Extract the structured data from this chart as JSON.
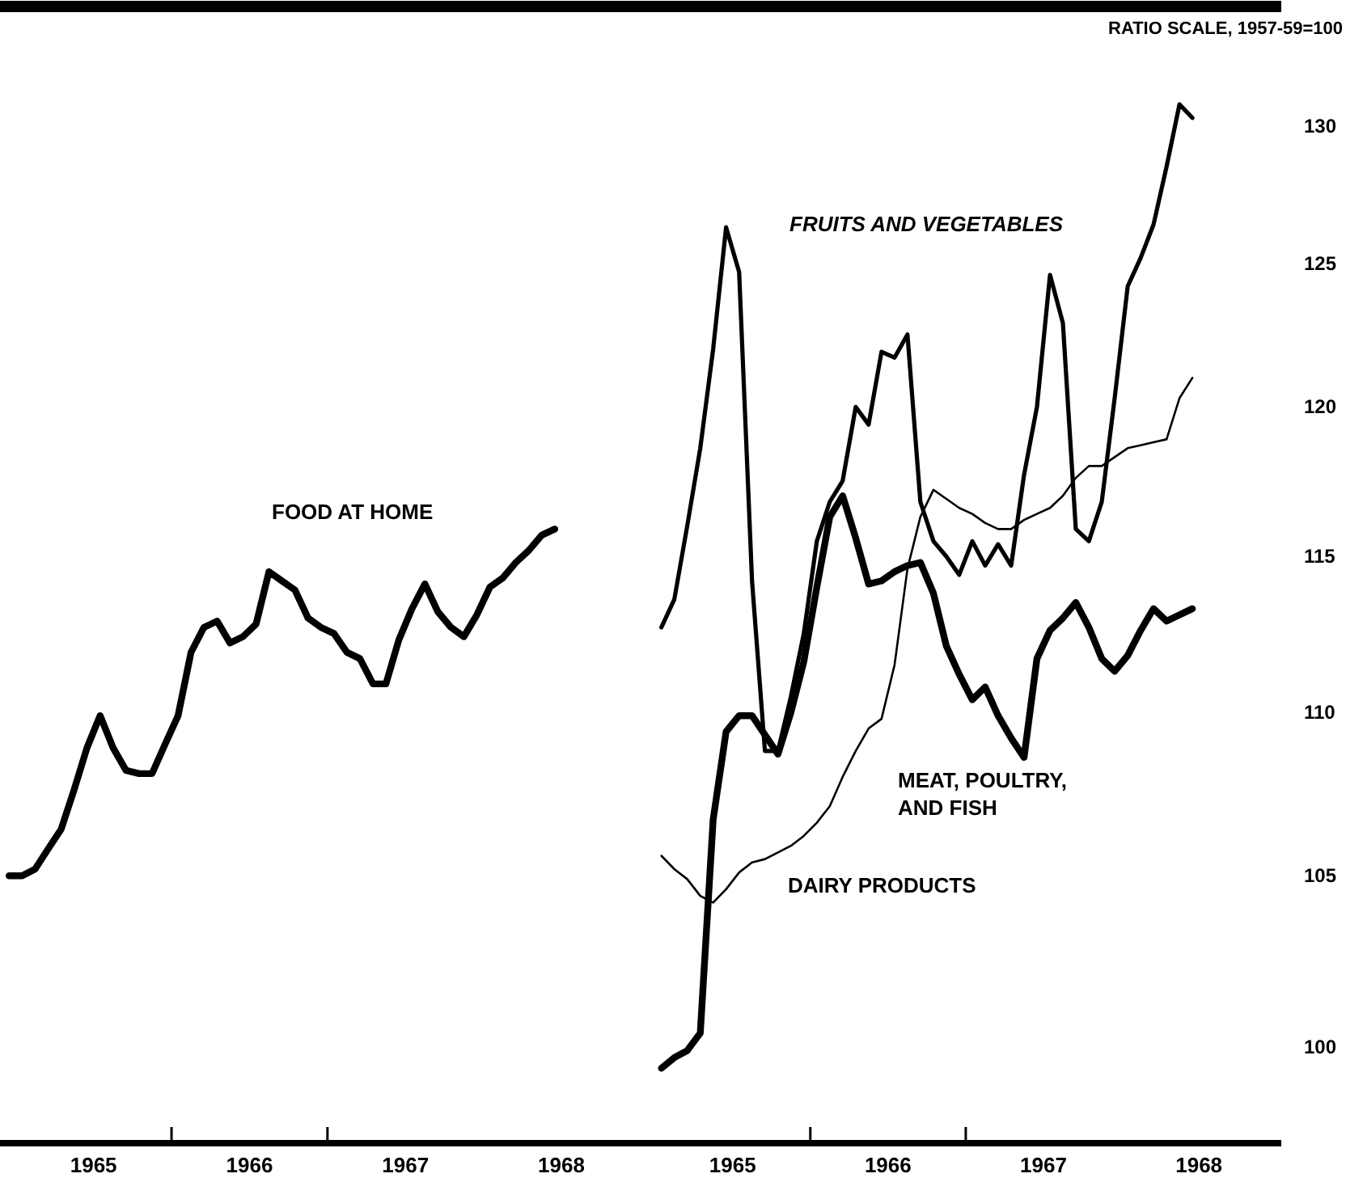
{
  "chart_data": [
    {
      "type": "line",
      "log": true,
      "tick_labels": "x",
      "x": [
        1964.958,
        1965.042,
        1965.125,
        1965.208,
        1965.292,
        1965.375,
        1965.458,
        1965.542,
        1965.625,
        1965.708,
        1965.792,
        1965.875,
        1965.958,
        1966.042,
        1966.125,
        1966.208,
        1966.292,
        1966.375,
        1966.458,
        1966.542,
        1966.625,
        1966.708,
        1966.792,
        1966.875,
        1966.958,
        1967.042,
        1967.125,
        1967.208,
        1967.292,
        1967.375,
        1967.458,
        1967.542,
        1967.625,
        1967.708,
        1967.792,
        1967.875,
        1967.958,
        1968.042,
        1968.125,
        1968.208,
        1968.292,
        1968.375,
        1968.458
      ],
      "series": [
        {
          "name": "FOOD AT HOME",
          "color": "#000000",
          "values": [
            105.0,
            105.0,
            105.2,
            105.8,
            106.4,
            107.6,
            108.9,
            109.9,
            108.9,
            108.2,
            108.1,
            108.1,
            109.0,
            109.9,
            111.9,
            112.7,
            112.9,
            112.2,
            112.4,
            112.8,
            114.5,
            114.2,
            113.9,
            113.0,
            112.7,
            112.5,
            111.9,
            111.7,
            110.9,
            110.9,
            112.3,
            113.3,
            114.1,
            113.2,
            112.7,
            112.4,
            113.1,
            114.0,
            114.3,
            114.8,
            115.2,
            115.7,
            115.9
          ]
        }
      ],
      "xlim": [
        1964.9,
        1969.05
      ],
      "ylim": [
        97.3,
        134.5
      ],
      "xticks": [
        {
          "value": 1965.5,
          "label": "1965"
        },
        {
          "value": 1966,
          "label": null
        },
        {
          "value": 1966.5,
          "label": "1966"
        },
        {
          "value": 1967,
          "label": null
        },
        {
          "value": 1967.5,
          "label": "1967"
        },
        {
          "value": 1968.5,
          "label": "1968"
        }
      ],
      "yticks": [
        100,
        105,
        110,
        115,
        120,
        125,
        130
      ]
    },
    {
      "type": "line",
      "log": true,
      "ylabel": "RATIO SCALE, 1957-59=100",
      "x": [
        1965.042,
        1965.125,
        1965.208,
        1965.292,
        1965.375,
        1965.458,
        1965.542,
        1965.625,
        1965.708,
        1965.792,
        1965.875,
        1965.958,
        1966.042,
        1966.125,
        1966.208,
        1966.292,
        1966.375,
        1966.458,
        1966.542,
        1966.625,
        1966.708,
        1966.792,
        1966.875,
        1966.958,
        1967.042,
        1967.125,
        1967.208,
        1967.292,
        1967.375,
        1967.458,
        1967.542,
        1967.625,
        1967.708,
        1967.792,
        1967.875,
        1967.958,
        1968.042,
        1968.125,
        1968.208,
        1968.292,
        1968.375,
        1968.458
      ],
      "series": [
        {
          "name": "FRUITS AND VEGETABLES",
          "color": "#000000",
          "values": [
            112.7,
            113.6,
            116.0,
            118.6,
            122.0,
            126.3,
            124.7,
            114.2,
            108.8,
            108.8,
            110.5,
            112.5,
            115.5,
            116.8,
            117.5,
            120.0,
            119.4,
            121.9,
            121.7,
            122.5,
            116.8,
            115.5,
            115.0,
            114.4,
            115.5,
            114.7,
            115.4,
            114.7,
            117.7,
            120.0,
            124.6,
            122.9,
            115.9,
            115.5,
            116.8,
            120.3,
            124.2,
            125.2,
            126.4,
            128.5,
            130.8,
            130.3
          ]
        },
        {
          "name": "MEAT, POULTRY, AND FISH",
          "color": "#000000",
          "values": [
            99.4,
            99.7,
            99.9,
            100.4,
            106.7,
            109.4,
            109.9,
            109.9,
            109.3,
            108.7,
            110.0,
            111.6,
            114.0,
            116.3,
            117.0,
            115.6,
            114.1,
            114.2,
            114.5,
            114.7,
            114.8,
            113.8,
            112.1,
            111.2,
            110.4,
            110.8,
            109.9,
            109.2,
            108.6,
            111.7,
            112.6,
            113.0,
            113.5,
            112.7,
            111.7,
            111.3,
            111.8,
            112.6,
            113.3,
            112.9,
            113.1,
            113.3
          ]
        },
        {
          "name": "DAIRY PRODUCTS",
          "color": "#000000",
          "values": [
            105.6,
            105.2,
            104.9,
            104.4,
            104.2,
            104.6,
            105.1,
            105.4,
            105.5,
            105.7,
            105.9,
            106.2,
            106.6,
            107.1,
            108.0,
            108.8,
            109.5,
            109.8,
            111.5,
            114.6,
            116.3,
            117.2,
            116.9,
            116.6,
            116.4,
            116.1,
            115.9,
            115.9,
            116.2,
            116.4,
            116.6,
            117.0,
            117.6,
            118.0,
            118.0,
            118.3,
            118.6,
            118.7,
            118.8,
            118.9,
            120.3,
            121.0
          ]
        }
      ],
      "xlim": [
        1964.95,
        1969.03
      ],
      "ylim": [
        97.3,
        134.5
      ],
      "xticks": [
        {
          "value": 1965.5,
          "label": "1965"
        },
        {
          "value": 1966,
          "label": null
        },
        {
          "value": 1966.5,
          "label": "1966"
        },
        {
          "value": 1967,
          "label": null
        },
        {
          "value": 1967.5,
          "label": "1967"
        },
        {
          "value": 1968.5,
          "label": "1968"
        }
      ],
      "yticks": [
        100,
        105,
        110,
        115,
        120,
        125,
        130
      ]
    }
  ]
}
